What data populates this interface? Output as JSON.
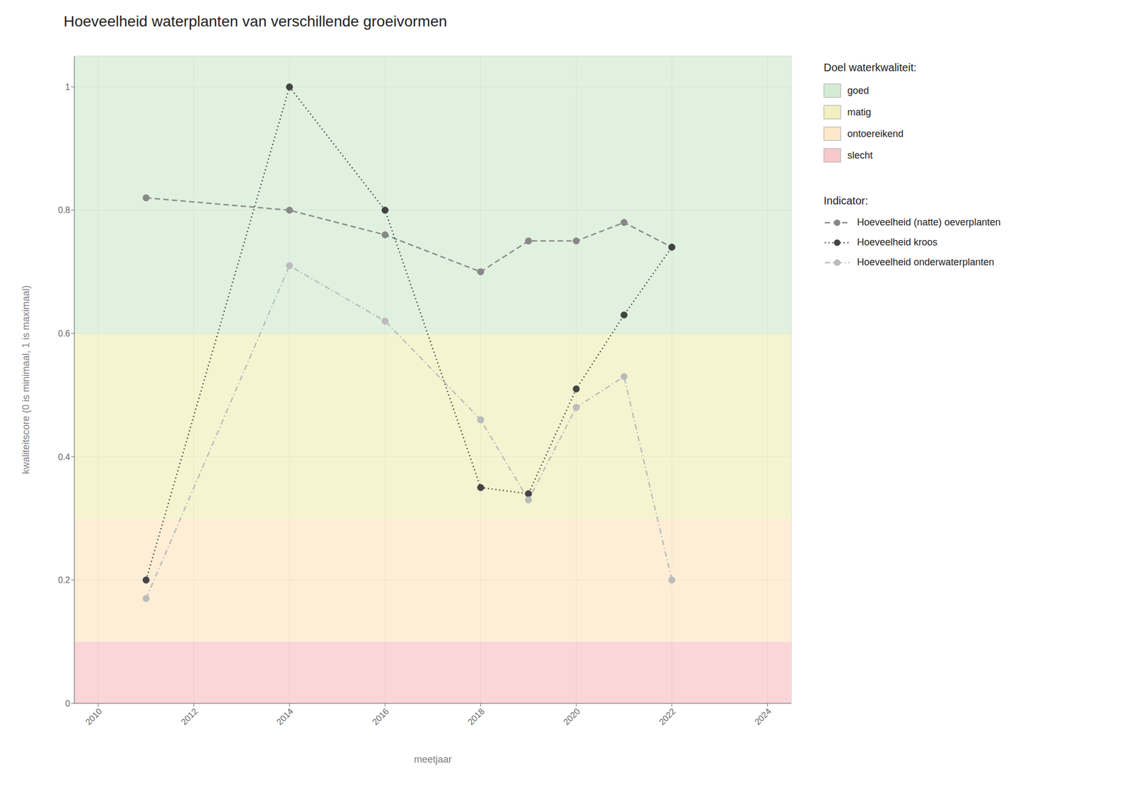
{
  "chart_data": {
    "type": "line",
    "title": "Hoeveelheid waterplanten van verschillende groeivormen",
    "x_label": "meetjaar",
    "y_label": "kwaliteitscore (0 is minimaal, 1 is maximaal)",
    "xlim": [
      2009.5,
      2024.5
    ],
    "ylim": [
      0.0,
      1.05
    ],
    "xticks": [
      2010,
      2012,
      2014,
      2016,
      2018,
      2020,
      2022,
      2024
    ],
    "yticks": [
      0.0,
      0.2,
      0.4,
      0.6,
      0.8,
      1.0
    ],
    "grid": true,
    "x": [
      2011,
      2014,
      2016,
      2018,
      2019,
      2020,
      2021,
      2022
    ],
    "bands_title": "Doel waterkwaliteit:",
    "bands": [
      {
        "label": "goed",
        "ymin": 0.6,
        "ymax": 1.05,
        "color": "#d5ecd4"
      },
      {
        "label": "matig",
        "ymin": 0.3,
        "ymax": 0.6,
        "color": "#f0f0c0"
      },
      {
        "label": "ontoereikend",
        "ymin": 0.1,
        "ymax": 0.3,
        "color": "#fde8c8"
      },
      {
        "label": "slecht",
        "ymin": 0.0,
        "ymax": 0.1,
        "color": "#f8c8cc"
      }
    ],
    "series_title": "Indicator:",
    "series": [
      {
        "name": "Hoeveelheid (natte) oeverplanten",
        "color": "#888888",
        "line_style": "dashed",
        "marker": "circle",
        "values": [
          0.82,
          0.8,
          0.76,
          0.7,
          0.75,
          0.75,
          0.78,
          0.74
        ]
      },
      {
        "name": "Hoeveelheid kroos",
        "color": "#444444",
        "line_style": "dotted",
        "marker": "circle",
        "values": [
          0.2,
          1.0,
          0.8,
          0.35,
          0.34,
          0.51,
          0.63,
          0.74
        ]
      },
      {
        "name": "Hoeveelheid onderwaterplanten",
        "color": "#bbbbbb",
        "line_style": "dashdot",
        "marker": "circle",
        "values": [
          0.17,
          0.71,
          0.62,
          0.46,
          0.33,
          0.48,
          0.53,
          0.2
        ]
      }
    ]
  }
}
